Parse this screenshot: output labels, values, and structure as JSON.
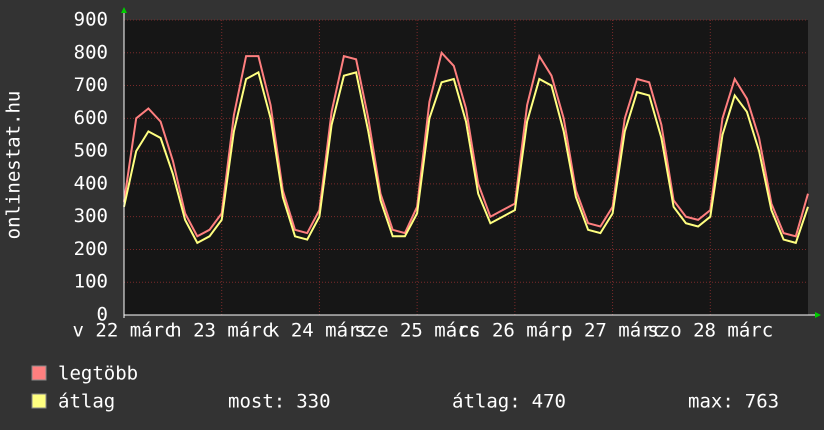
{
  "chart_data": {
    "type": "line",
    "ylabel": "onlinestat.hu",
    "x": [
      0,
      3,
      6,
      9,
      12,
      15,
      18,
      21,
      24,
      27,
      30,
      33,
      36,
      39,
      42,
      45,
      48,
      51,
      54,
      57,
      60,
      63,
      66,
      69,
      72,
      75,
      78,
      81,
      84,
      87,
      90,
      93,
      96,
      99,
      102,
      105,
      108,
      111,
      114,
      117,
      120,
      123,
      126,
      129,
      132,
      135,
      138,
      141,
      144,
      147,
      150,
      153,
      156,
      159,
      162,
      165,
      168
    ],
    "xlim": [
      0,
      168
    ],
    "xticks": [
      {
        "value": 0,
        "label": "v 22 márc"
      },
      {
        "value": 24,
        "label": "h 23 márc"
      },
      {
        "value": 48,
        "label": "k 24 márc"
      },
      {
        "value": 72,
        "label": "sze 25 márc"
      },
      {
        "value": 96,
        "label": "cs 26 márc"
      },
      {
        "value": 120,
        "label": "p 27 márc"
      },
      {
        "value": 144,
        "label": "szo 28 márc"
      }
    ],
    "ylim": [
      0,
      900
    ],
    "yticks": [
      0,
      100,
      200,
      300,
      400,
      500,
      600,
      700,
      800,
      900
    ],
    "grid": true,
    "series": [
      {
        "name": "legtöbb",
        "color": "#ff7f7f",
        "values": [
          345,
          600,
          630,
          590,
          470,
          310,
          240,
          260,
          310,
          610,
          790,
          790,
          640,
          380,
          260,
          250,
          320,
          620,
          790,
          780,
          600,
          370,
          260,
          250,
          330,
          650,
          800,
          760,
          630,
          400,
          300,
          320,
          340,
          640,
          790,
          730,
          600,
          380,
          280,
          270,
          330,
          600,
          720,
          710,
          580,
          350,
          300,
          290,
          320,
          600,
          720,
          660,
          540,
          340,
          250,
          240,
          370
        ]
      },
      {
        "name": "átlag",
        "color": "#ffff80",
        "values": [
          330,
          500,
          560,
          540,
          430,
          290,
          220,
          240,
          290,
          560,
          720,
          740,
          600,
          360,
          240,
          230,
          300,
          580,
          730,
          740,
          560,
          350,
          240,
          240,
          310,
          600,
          710,
          720,
          590,
          370,
          280,
          300,
          320,
          590,
          720,
          700,
          560,
          360,
          260,
          250,
          310,
          560,
          680,
          670,
          540,
          330,
          280,
          270,
          300,
          550,
          670,
          620,
          500,
          320,
          230,
          220,
          330
        ]
      }
    ],
    "stats": [
      {
        "label": "most:",
        "value": 330
      },
      {
        "label": "átlag:",
        "value": 470
      },
      {
        "label": "max:",
        "value": 763
      }
    ]
  }
}
